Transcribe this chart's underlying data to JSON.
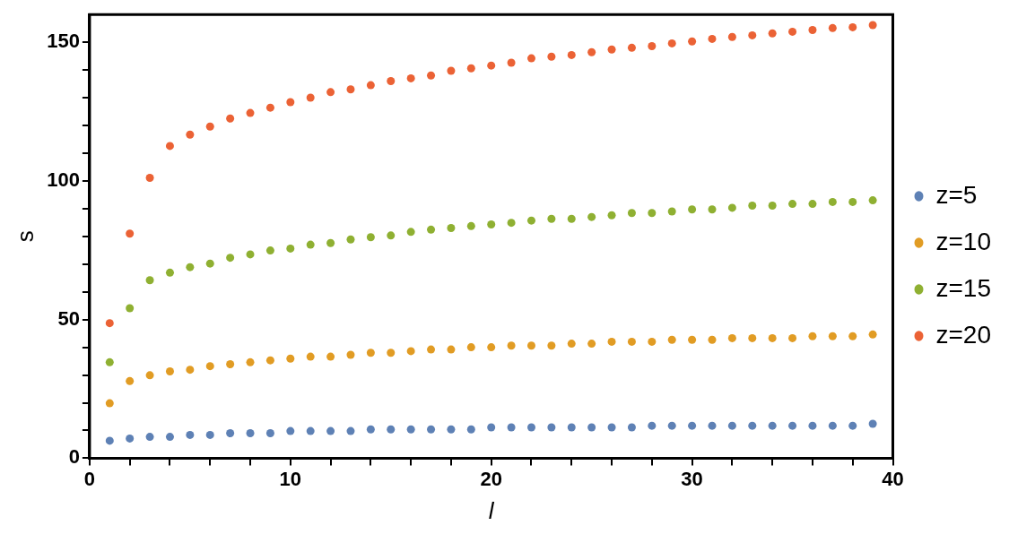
{
  "chart_data": {
    "type": "scatter",
    "xlabel": "l",
    "ylabel": "s",
    "x": [
      1,
      2,
      3,
      4,
      5,
      6,
      7,
      8,
      9,
      10,
      11,
      12,
      13,
      14,
      15,
      16,
      17,
      18,
      19,
      20,
      21,
      22,
      23,
      24,
      25,
      26,
      27,
      28,
      29,
      30,
      31,
      32,
      33,
      34,
      35,
      36,
      37,
      38,
      39
    ],
    "xlim": [
      0,
      40
    ],
    "xticks": [
      0,
      {
        "value": 2,
        "label": null
      },
      {
        "value": 4,
        "label": null
      },
      {
        "value": 6,
        "label": null
      },
      {
        "value": 8,
        "label": null
      },
      10,
      {
        "value": 12,
        "label": null
      },
      {
        "value": 14,
        "label": null
      },
      {
        "value": 16,
        "label": null
      },
      {
        "value": 18,
        "label": null
      },
      20,
      {
        "value": 22,
        "label": null
      },
      {
        "value": 24,
        "label": null
      },
      {
        "value": 26,
        "label": null
      },
      {
        "value": 28,
        "label": null
      },
      30,
      {
        "value": 32,
        "label": null
      },
      {
        "value": 34,
        "label": null
      },
      {
        "value": 36,
        "label": null
      },
      {
        "value": 38,
        "label": null
      },
      40
    ],
    "ylim": [
      0,
      160
    ],
    "yticks": [
      0,
      {
        "value": 10,
        "label": null
      },
      {
        "value": 20,
        "label": null
      },
      {
        "value": 30,
        "label": null
      },
      {
        "value": 40,
        "label": null
      },
      50,
      {
        "value": 60,
        "label": null
      },
      {
        "value": 70,
        "label": null
      },
      {
        "value": 80,
        "label": null
      },
      {
        "value": 90,
        "label": null
      },
      100,
      {
        "value": 110,
        "label": null
      },
      {
        "value": 120,
        "label": null
      },
      {
        "value": 130,
        "label": null
      },
      {
        "value": 140,
        "label": null
      },
      150
    ],
    "grid": false,
    "legend": "right",
    "marker": "circle",
    "series": [
      {
        "name": "z=5",
        "color": "#5e81b5",
        "values": [
          6.3,
          7.1,
          7.7,
          7.7,
          8.4,
          8.4,
          9.0,
          9.0,
          9.0,
          9.8,
          9.8,
          9.8,
          9.8,
          10.4,
          10.4,
          10.4,
          10.4,
          10.4,
          10.4,
          11.1,
          11.1,
          11.1,
          11.1,
          11.1,
          11.1,
          11.1,
          11.1,
          11.7,
          11.7,
          11.7,
          11.7,
          11.7,
          11.7,
          11.7,
          11.7,
          11.7,
          11.7,
          11.7,
          12.4
        ]
      },
      {
        "name": "z=10",
        "color": "#e19c24",
        "values": [
          19.8,
          27.8,
          29.9,
          31.3,
          31.9,
          33.2,
          33.9,
          34.6,
          35.3,
          35.9,
          36.6,
          36.6,
          37.3,
          38.0,
          38.0,
          38.6,
          39.2,
          39.2,
          40.0,
          40.0,
          40.6,
          40.6,
          40.6,
          41.3,
          41.3,
          42.0,
          42.0,
          42.0,
          42.7,
          42.7,
          42.7,
          43.3,
          43.3,
          43.3,
          43.3,
          44.0,
          44.0,
          44.0,
          44.6
        ]
      },
      {
        "name": "z=15",
        "color": "#8fb032",
        "values": [
          34.6,
          54.1,
          64.2,
          66.9,
          68.9,
          70.2,
          72.3,
          73.5,
          74.9,
          75.6,
          77.0,
          77.6,
          78.9,
          79.7,
          80.3,
          81.6,
          82.4,
          83.0,
          83.7,
          84.3,
          84.9,
          85.7,
          86.3,
          86.3,
          87.0,
          87.6,
          88.4,
          88.4,
          89.0,
          89.7,
          89.7,
          90.3,
          91.1,
          91.1,
          91.7,
          91.7,
          92.4,
          92.4,
          93.0
        ]
      },
      {
        "name": "z=20",
        "color": "#eb6235",
        "values": [
          48.7,
          81.0,
          101.1,
          112.6,
          116.7,
          119.6,
          122.5,
          124.5,
          126.4,
          128.4,
          130.0,
          132.0,
          133.0,
          134.5,
          136.0,
          137.0,
          138.0,
          139.7,
          140.6,
          141.6,
          142.6,
          144.2,
          144.8,
          145.4,
          146.4,
          147.4,
          148.0,
          148.6,
          149.6,
          150.3,
          151.2,
          151.9,
          152.5,
          153.2,
          153.8,
          154.4,
          155.1,
          155.4,
          156.2
        ]
      }
    ]
  }
}
